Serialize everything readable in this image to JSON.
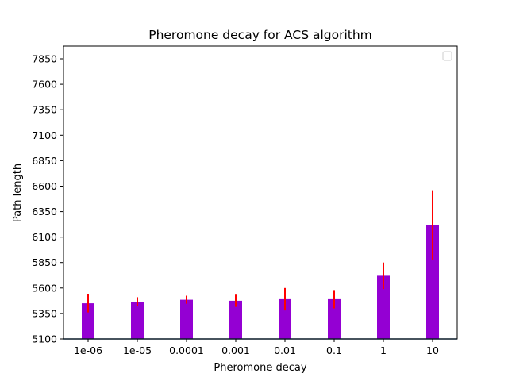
{
  "chart_data": {
    "type": "bar",
    "title": "Pheromone decay for ACS algorithm",
    "xlabel": "Pheromone decay",
    "ylabel": "Path length",
    "categories": [
      "1e-06",
      "1e-05",
      "0.0001",
      "0.001",
      "0.01",
      "0.1",
      "1",
      "10"
    ],
    "series": [
      {
        "values": [
          5450,
          5465,
          5485,
          5475,
          5490,
          5490,
          5720,
          6220
        ],
        "error": [
          90,
          45,
          40,
          60,
          110,
          90,
          130,
          340
        ]
      }
    ],
    "ylim": [
      5100,
      7975
    ],
    "yticks": [
      5100,
      5350,
      5600,
      5850,
      6100,
      6350,
      6600,
      6850,
      7100,
      7350,
      7600,
      7850
    ],
    "ytick_labels": [
      "5100",
      "5350",
      "5600",
      "5850",
      "6100",
      "6350",
      "6600",
      "6850",
      "7100",
      "7350",
      "7600",
      "7850"
    ],
    "legend": "top-right",
    "grid": false,
    "colors": {
      "bar": "#9400d3",
      "error": "#ff0000",
      "baseline": "#1f4e79"
    }
  }
}
